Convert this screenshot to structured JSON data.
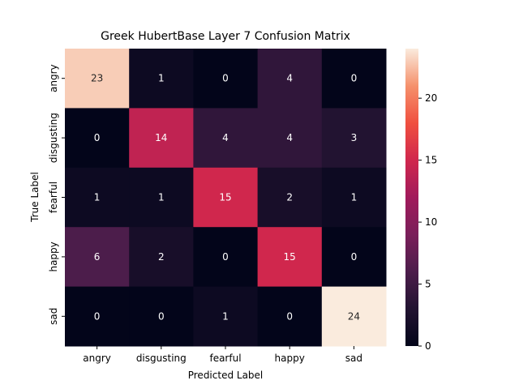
{
  "chart_data": {
    "type": "heatmap",
    "title": "Greek HubertBase Layer 7 Confusion Matrix",
    "xlabel": "Predicted Label",
    "ylabel": "True Label",
    "x_categories": [
      "angry",
      "disgusting",
      "fearful",
      "happy",
      "sad"
    ],
    "y_categories": [
      "angry",
      "disgusting",
      "fearful",
      "happy",
      "sad"
    ],
    "values": [
      [
        23,
        1,
        0,
        4,
        0
      ],
      [
        0,
        14,
        4,
        4,
        3
      ],
      [
        1,
        1,
        15,
        2,
        1
      ],
      [
        6,
        2,
        0,
        15,
        0
      ],
      [
        0,
        0,
        1,
        0,
        24
      ]
    ],
    "colorbar": {
      "range": [
        0,
        24
      ],
      "ticks": [
        0,
        5,
        10,
        15,
        20
      ],
      "colormap": "rocket"
    }
  }
}
